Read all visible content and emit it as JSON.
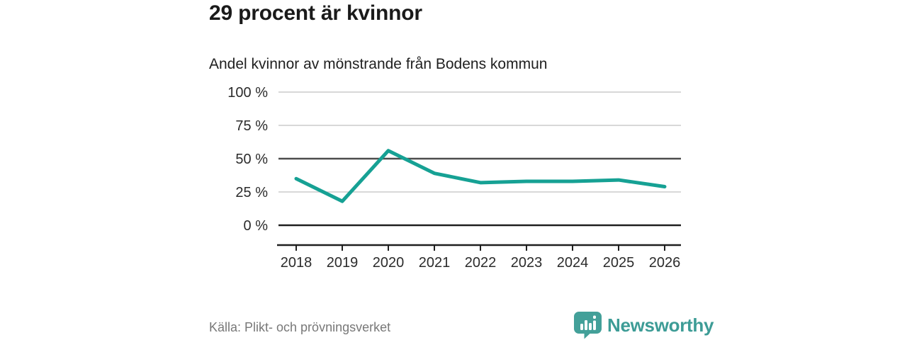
{
  "header": {
    "title": "29 procent är kvinnor",
    "subtitle": "Andel kvinnor av mönstrande från Bodens kommun"
  },
  "chart_data": {
    "type": "line",
    "title": "29 procent är kvinnor",
    "subtitle": "Andel kvinnor av mönstrande från Bodens kommun",
    "categories": [
      "2018",
      "2019",
      "2020",
      "2021",
      "2022",
      "2023",
      "2024",
      "2025",
      "2026"
    ],
    "series": [
      {
        "name": "Andel kvinnor av mönstrande från Bodens kommun (%)",
        "values": [
          35,
          18,
          56,
          39,
          32,
          33,
          33,
          34,
          29
        ]
      }
    ],
    "xlabel": "",
    "ylabel": "",
    "ylim": [
      0,
      100
    ],
    "grid": "horizontal",
    "legend": "none",
    "y_ticks": [
      {
        "value": 0,
        "label": "0 %"
      },
      {
        "value": 25,
        "label": "25 %"
      },
      {
        "value": 50,
        "label": "50 %"
      },
      {
        "value": 75,
        "label": "75 %"
      },
      {
        "value": 100,
        "label": "100 %"
      }
    ],
    "emphasized_gridlines": [
      0,
      50
    ],
    "line_color": "#16a194"
  },
  "footer": {
    "source": "Källa: Plikt- och prövningsverket",
    "brand": "Newsworthy"
  },
  "colors": {
    "accent": "#16a194",
    "brand_teal": "#3d9c96",
    "grid_light": "#cccccc",
    "grid_mid": "#4d4d4d",
    "grid_zero": "#1f1f1f",
    "axis_text": "#2b2b2b",
    "muted_text": "#787878"
  }
}
